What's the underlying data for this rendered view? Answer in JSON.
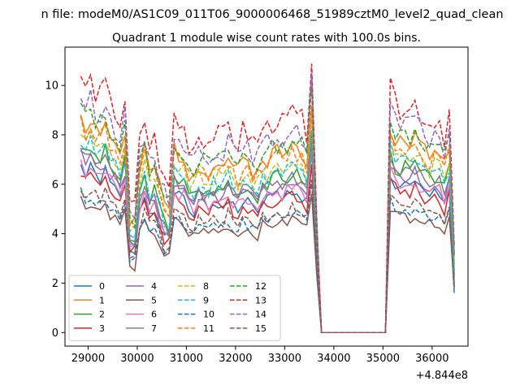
{
  "suptitle": "n file: modeM0/AS1C09_011T06_9000006468_51989cztM0_level2_quad_clean",
  "chart_data": {
    "type": "line",
    "title": "Quadrant 1 module wise count rates with 100.0s bins.",
    "xlabel": "",
    "ylabel": "",
    "offset_text": "+4.844e8",
    "xlim": [
      28530,
      36730
    ],
    "ylim": [
      -0.55,
      11.55
    ],
    "xticks": [
      29000,
      30000,
      31000,
      32000,
      33000,
      34000,
      35000,
      36000
    ],
    "yticks": [
      0,
      2,
      4,
      6,
      8,
      10
    ],
    "grid": false,
    "legend": {
      "placement": "lower-left",
      "ncol": 4
    },
    "colors": [
      "#1f77b4",
      "#ff7f0e",
      "#2ca02c",
      "#d62728",
      "#9467bd",
      "#8c564b",
      "#e377c2",
      "#7f7f7f",
      "#bcbd22",
      "#17becf",
      "#1f77b4",
      "#ff7f0e",
      "#2ca02c",
      "#d62728",
      "#9467bd",
      "#8c564b"
    ],
    "dashed_from": 8,
    "x": [
      28850,
      28950,
      29050,
      29150,
      29250,
      29350,
      29450,
      29550,
      29650,
      29750,
      29850,
      29950,
      30050,
      30150,
      30250,
      30350,
      30450,
      30550,
      30650,
      30750,
      30850,
      30950,
      31050,
      31150,
      31250,
      31350,
      31450,
      31550,
      31650,
      31750,
      31850,
      31950,
      32050,
      32150,
      32250,
      32350,
      32450,
      32550,
      32650,
      32750,
      32850,
      32950,
      33050,
      33150,
      33250,
      33350,
      33450,
      33550,
      33650,
      33750,
      33850,
      33950,
      34050,
      34150,
      34250,
      34350,
      34450,
      34550,
      34650,
      34750,
      34850,
      34950,
      35050,
      35150,
      35250,
      35350,
      35450,
      35550,
      35650,
      35750,
      35850,
      35950,
      36050,
      36150,
      36250,
      36350,
      36450
    ],
    "baseline_profile": [
      6.45,
      6.05,
      6.3,
      6.0,
      5.95,
      6.2,
      5.7,
      5.5,
      5.25,
      5.85,
      3.05,
      3.2,
      4.75,
      5.3,
      4.65,
      4.85,
      4.3,
      3.75,
      3.6,
      5.45,
      5.2,
      5.1,
      4.7,
      4.65,
      4.95,
      4.85,
      4.75,
      4.95,
      4.9,
      4.9,
      5.2,
      4.85,
      4.7,
      5.05,
      4.95,
      4.8,
      4.7,
      5.15,
      5.1,
      5.2,
      5.35,
      5.2,
      5.3,
      5.5,
      5.4,
      5.3,
      5.0,
      6.9,
      3.05,
      0.0,
      0.0,
      0.0,
      0.0,
      0.0,
      0.0,
      0.0,
      0.0,
      0.0,
      0.0,
      0.0,
      0.0,
      0.0,
      0.0,
      6.1,
      5.7,
      5.6,
      5.65,
      5.55,
      5.75,
      5.5,
      5.35,
      5.2,
      5.35,
      5.3,
      4.9,
      5.55,
      2.05
    ],
    "series": [
      {
        "name": "0",
        "scale": 1.05
      },
      {
        "name": "1",
        "scale": 1.38
      },
      {
        "name": "2",
        "scale": 1.18
      },
      {
        "name": "3",
        "scale": 1.02
      },
      {
        "name": "4",
        "scale": 1.12
      },
      {
        "name": "5",
        "scale": 0.84
      },
      {
        "name": "6",
        "scale": 1.08
      },
      {
        "name": "7",
        "scale": 1.15
      },
      {
        "name": "8",
        "scale": 1.27
      },
      {
        "name": "9",
        "scale": 1.22
      },
      {
        "name": "10",
        "scale": 0.88
      },
      {
        "name": "11",
        "scale": 1.33
      },
      {
        "name": "12",
        "scale": 1.43
      },
      {
        "name": "13",
        "scale": 1.62
      },
      {
        "name": "14",
        "scale": 1.5
      },
      {
        "name": "15",
        "scale": 0.92
      }
    ]
  }
}
